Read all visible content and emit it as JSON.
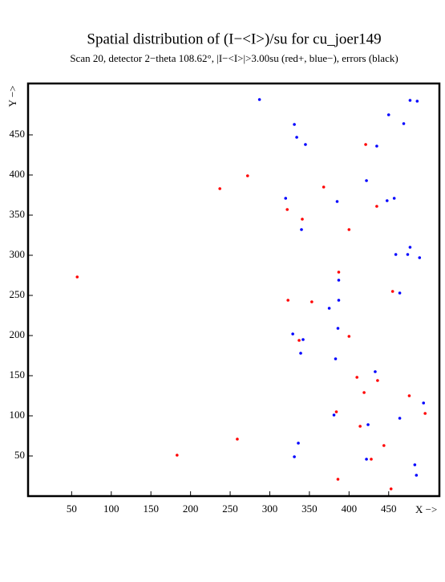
{
  "chart_data": {
    "type": "scatter",
    "title": "Spatial distribution of (I−<I>)/su for cu_joer149",
    "subtitle": "Scan 20, detector 2−theta 108.62°, |I−<I>|>3.00su (red+, blue−), errors (black)",
    "x_label": "X −>",
    "y_label": "Y −>",
    "xlim": [
      -5,
      514
    ],
    "ylim": [
      0,
      514
    ],
    "xticks": [
      50,
      100,
      150,
      200,
      250,
      300,
      350,
      400,
      450
    ],
    "yticks": [
      50,
      100,
      150,
      200,
      250,
      300,
      350,
      400,
      450
    ],
    "series": [
      {
        "color": "#ff0000",
        "x": [
          57,
          272,
          237,
          368,
          322,
          341,
          435,
          421,
          400,
          387,
          455,
          323,
          353,
          337,
          400,
          410,
          436,
          419,
          476,
          496,
          384,
          414,
          444,
          259,
          183,
          428,
          386,
          453
        ],
        "values": [
          273,
          399,
          383,
          385,
          357,
          345,
          361,
          438,
          332,
          279,
          255,
          244,
          242,
          194,
          199,
          148,
          144,
          129,
          125,
          103,
          105,
          87,
          63,
          71,
          51,
          46,
          21,
          9
        ]
      },
      {
        "color": "#0000ff",
        "x": [
          287,
          331,
          334,
          345,
          450,
          477,
          486,
          469,
          435,
          422,
          320,
          385,
          448,
          457,
          340,
          477,
          459,
          474,
          489,
          387,
          464,
          387,
          375,
          329,
          342,
          386,
          339,
          383,
          433,
          494,
          381,
          424,
          464,
          336,
          331,
          422,
          483,
          485
        ],
        "values": [
          494,
          463,
          447,
          438,
          475,
          493,
          492,
          464,
          436,
          393,
          371,
          367,
          368,
          371,
          332,
          310,
          301,
          301,
          297,
          269,
          253,
          244,
          234,
          202,
          195,
          209,
          178,
          171,
          155,
          116,
          101,
          89,
          97,
          66,
          49,
          46,
          39,
          26
        ]
      }
    ]
  }
}
